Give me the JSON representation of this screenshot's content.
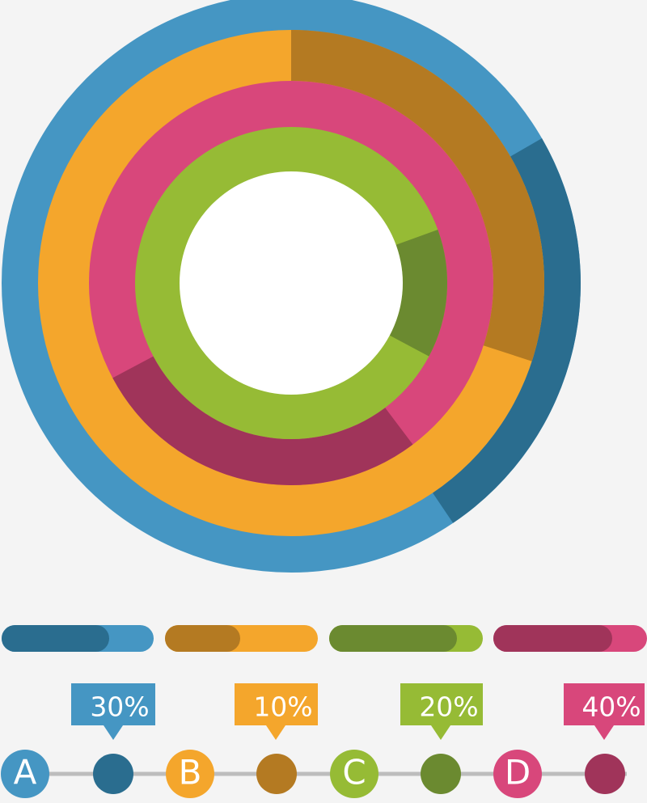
{
  "items": [
    {
      "letter": "A",
      "percent": "30%"
    },
    {
      "letter": "B",
      "percent": "10%"
    },
    {
      "letter": "C",
      "percent": "20%"
    },
    {
      "letter": "D",
      "percent": "40%"
    }
  ]
}
